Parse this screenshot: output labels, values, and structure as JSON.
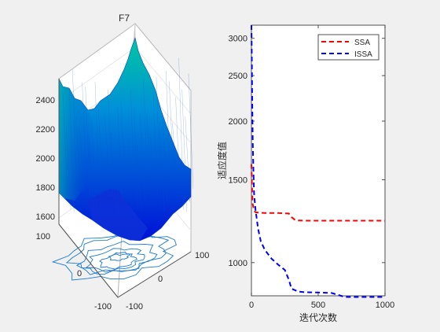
{
  "chart_data": [
    {
      "type": "surface",
      "title": "F7",
      "z_ticks": [
        "1600",
        "1800",
        "2000",
        "2200",
        "2400"
      ],
      "x_ticks": [
        "-100",
        "0",
        "100"
      ],
      "y_ticks": [
        "-100",
        "0",
        "100"
      ],
      "zlim": [
        1550,
        2500
      ],
      "colormap": [
        "#00c8a0",
        "#0080e0",
        "#0010d8"
      ],
      "contour_color": "#1a7acc"
    },
    {
      "type": "line",
      "xlabel": "迭代次数",
      "ylabel": "适应度值",
      "xlim": [
        0,
        1000
      ],
      "ylim": [
        850,
        3200
      ],
      "y_scale": "log",
      "x_ticks": [
        "0",
        "500",
        "1000"
      ],
      "y_ticks": [
        "1000",
        "1500",
        "2000",
        "2500",
        "3000"
      ],
      "legend": "top-right",
      "series": [
        {
          "name": "SSA",
          "color": "#ff0000",
          "style": "dashed",
          "x": [
            0,
            5,
            10,
            20,
            30,
            50,
            100,
            200,
            280,
            300,
            330,
            400,
            600,
            800,
            1000
          ],
          "y": [
            1620,
            1420,
            1330,
            1290,
            1280,
            1278,
            1275,
            1275,
            1272,
            1250,
            1230,
            1228,
            1228,
            1228,
            1228
          ]
        },
        {
          "name": "ISSA",
          "color": "#0000ff",
          "style": "dashed",
          "x": [
            0,
            3,
            6,
            10,
            15,
            20,
            30,
            50,
            70,
            100,
            150,
            200,
            250,
            280,
            300,
            350,
            400,
            500,
            600,
            700,
            1000
          ],
          "y": [
            3200,
            2700,
            2200,
            1800,
            1550,
            1400,
            1300,
            1180,
            1110,
            1065,
            1020,
            990,
            965,
            920,
            880,
            868,
            865,
            864,
            862,
            845,
            845
          ]
        }
      ]
    }
  ]
}
